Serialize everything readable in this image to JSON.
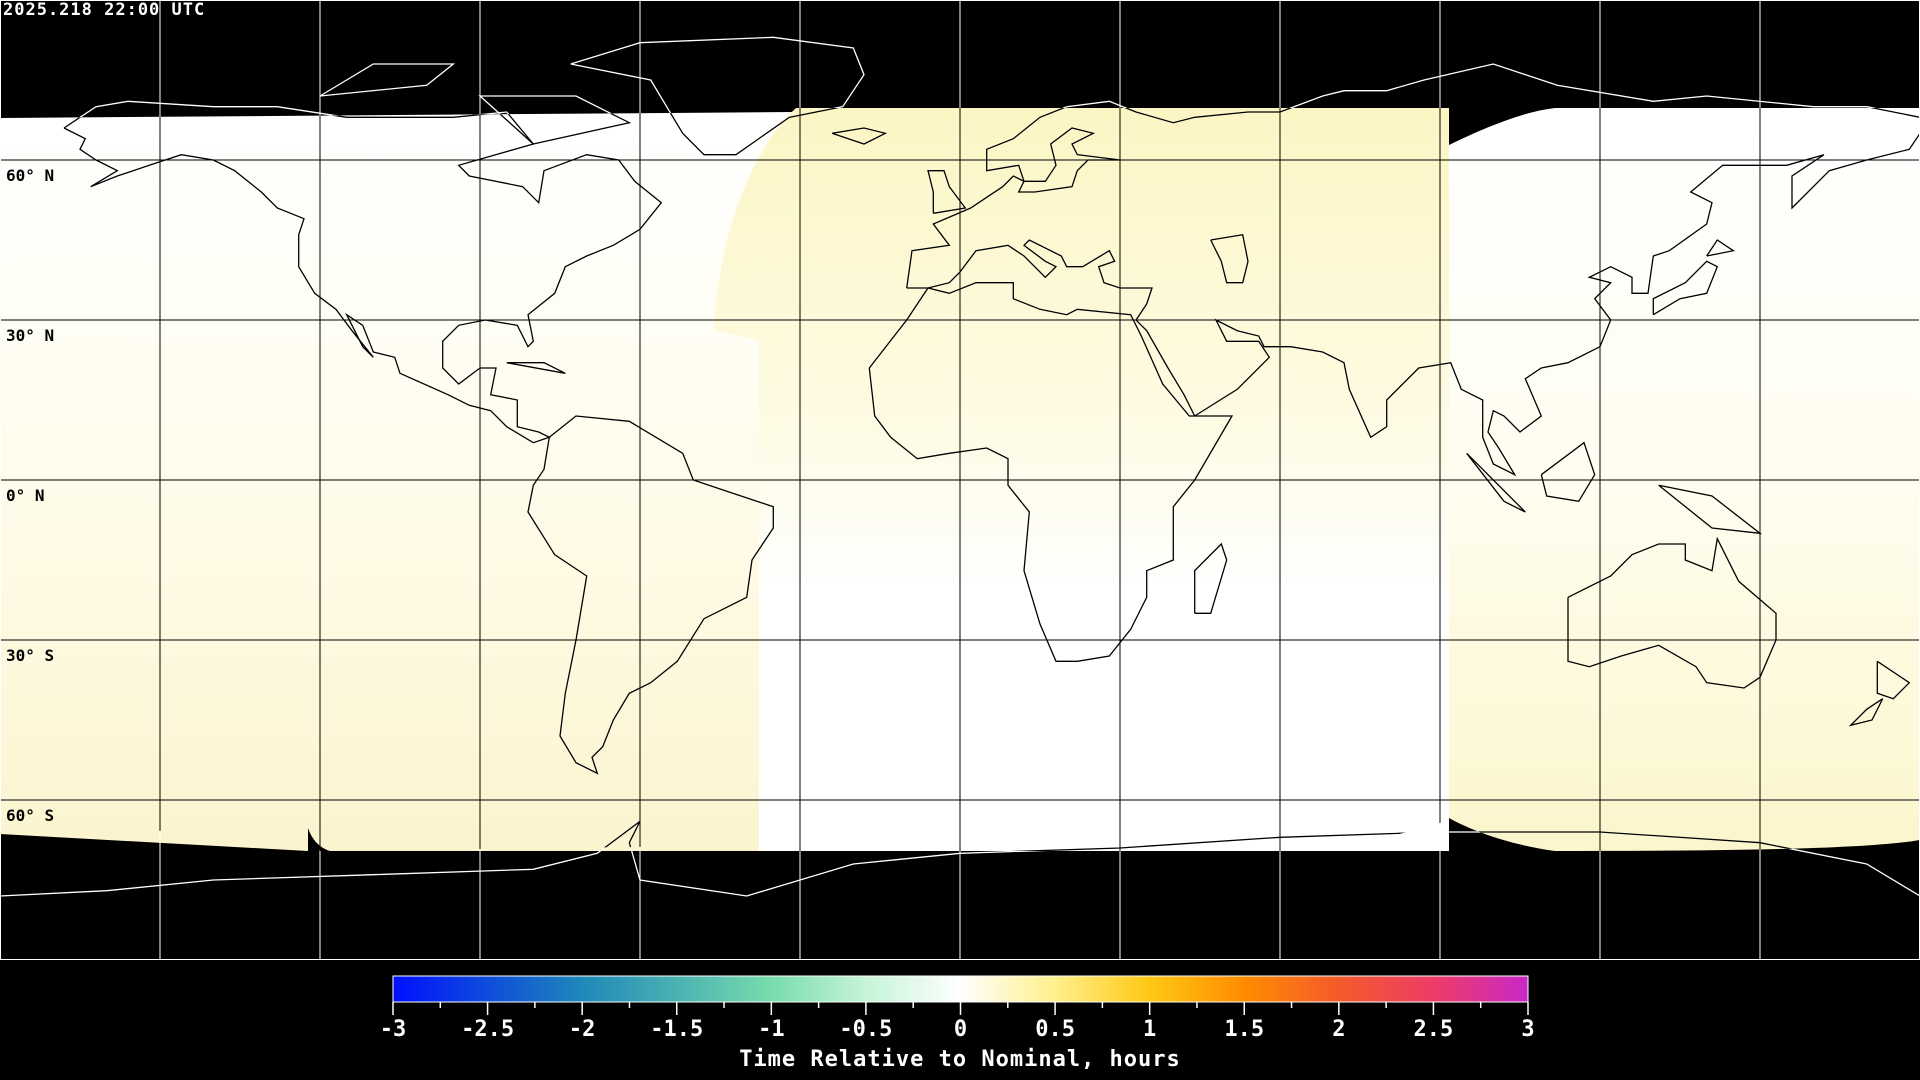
{
  "title": "2025.218 22:00 UTC",
  "map": {
    "projection": "equirectangular",
    "graticule_step_deg": 30,
    "no_data_color": "#000000",
    "coastline_color_on_data": "#000000",
    "coastline_color_on_nodata": "#ffffff",
    "lat_labels": [
      "60° N",
      "30° N",
      "0° N",
      "30° S",
      "60° S"
    ],
    "lat_values": [
      60,
      30,
      0,
      -30,
      -60
    ]
  },
  "colorbar": {
    "label": "Time Relative to Nominal, hours",
    "min": -3,
    "max": 3,
    "ticks": [
      "-3",
      "-2.5",
      "-2",
      "-1.5",
      "-1",
      "-0.5",
      "0",
      "0.5",
      "1",
      "1.5",
      "2",
      "2.5",
      "3"
    ],
    "colormap": [
      {
        "value": -3,
        "color": "#0010ff"
      },
      {
        "value": -2,
        "color": "#1e88b8"
      },
      {
        "value": -1,
        "color": "#78dcac"
      },
      {
        "value": -0.5,
        "color": "#c6f4d8"
      },
      {
        "value": 0,
        "color": "#ffffff"
      },
      {
        "value": 0.5,
        "color": "#fff08c"
      },
      {
        "value": 1,
        "color": "#ffc814"
      },
      {
        "value": 1.5,
        "color": "#ff8c00"
      },
      {
        "value": 2,
        "color": "#f45a2a"
      },
      {
        "value": 2.5,
        "color": "#ee3c66"
      },
      {
        "value": 3,
        "color": "#c828c8"
      }
    ]
  }
}
